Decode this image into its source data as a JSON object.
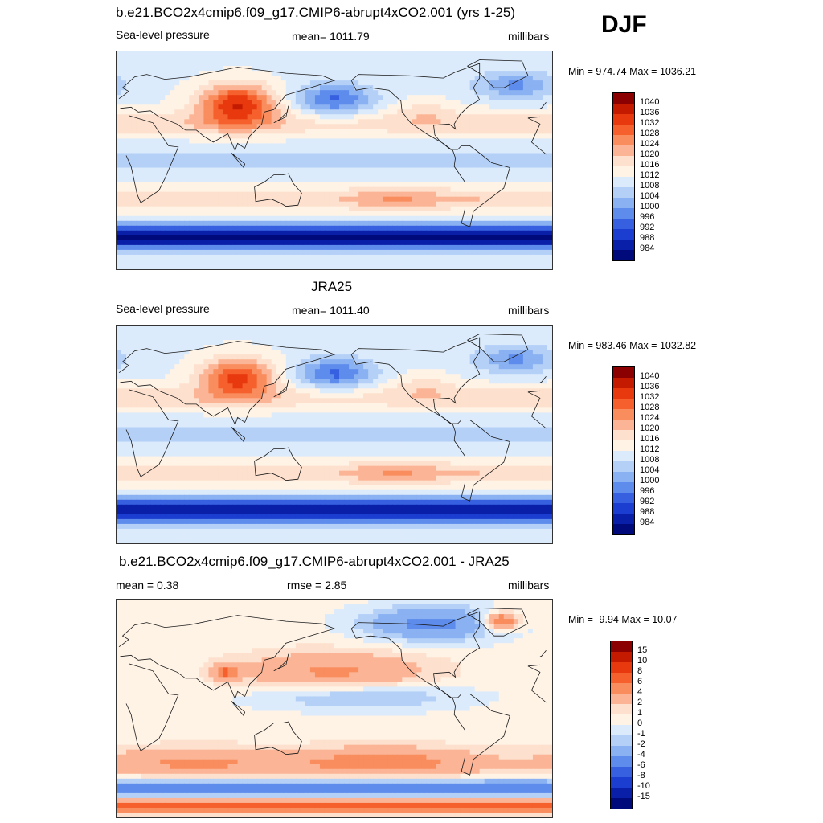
{
  "season": "DJF",
  "coast_color": "#1a1a1a",
  "panels": [
    {
      "title": "b.e21.BCO2x4cmip6.f09_g17.CMIP6-abrupt4xCO2.001 (yrs 1-25)",
      "left_label": "Sea-level pressure",
      "center_label": "mean= 1011.79",
      "right_label": "millibars",
      "minmax": "Min = 974.74 Max = 1036.21",
      "levels": [
        "1040",
        "1036",
        "1032",
        "1028",
        "1024",
        "1020",
        "1016",
        "1012",
        "1008",
        "1004",
        "1000",
        "996",
        "992",
        "988",
        "984"
      ],
      "colors": [
        "#8b0000",
        "#c41a00",
        "#e8380d",
        "#f5602d",
        "#f98d5e",
        "#fbb596",
        "#fde0cd",
        "#fff3e6",
        "#dcebfb",
        "#b4d0f7",
        "#8ab1f2",
        "#5d8cec",
        "#3660e0",
        "#1b3dd0",
        "#0a1fa8",
        "#000a7a"
      ],
      "mean_field": "ctl"
    },
    {
      "title": "JRA25",
      "left_label": "Sea-level pressure",
      "center_label": "mean= 1011.40",
      "right_label": "millibars",
      "minmax": "Min = 983.46 Max = 1032.82",
      "levels": [
        "1040",
        "1036",
        "1032",
        "1028",
        "1024",
        "1020",
        "1016",
        "1012",
        "1008",
        "1004",
        "1000",
        "996",
        "992",
        "988",
        "984"
      ],
      "colors": [
        "#8b0000",
        "#c41a00",
        "#e8380d",
        "#f5602d",
        "#f98d5e",
        "#fbb596",
        "#fde0cd",
        "#fff3e6",
        "#dcebfb",
        "#b4d0f7",
        "#8ab1f2",
        "#5d8cec",
        "#3660e0",
        "#1b3dd0",
        "#0a1fa8",
        "#000a7a"
      ],
      "mean_field": "obs"
    },
    {
      "title": "b.e21.BCO2x4cmip6.f09_g17.CMIP6-abrupt4xCO2.001 - JRA25",
      "left_label": "mean =   0.38",
      "center_label": "rmse =   2.85",
      "right_label": "millibars",
      "minmax": "Min =  -9.94 Max =  10.07",
      "levels": [
        "15",
        "10",
        "8",
        "6",
        "4",
        "2",
        "1",
        "0",
        "-1",
        "-2",
        "-4",
        "-6",
        "-8",
        "-10",
        "-15"
      ],
      "colors": [
        "#8b0000",
        "#c41a00",
        "#e8380d",
        "#f5602d",
        "#f98d5e",
        "#fbb596",
        "#fde0cd",
        "#fff3e6",
        "#dcebfb",
        "#b4d0f7",
        "#8ab1f2",
        "#5d8cec",
        "#3660e0",
        "#1b3dd0",
        "#0a1fa8",
        "#000a7a"
      ],
      "mean_field": "diff"
    }
  ]
}
